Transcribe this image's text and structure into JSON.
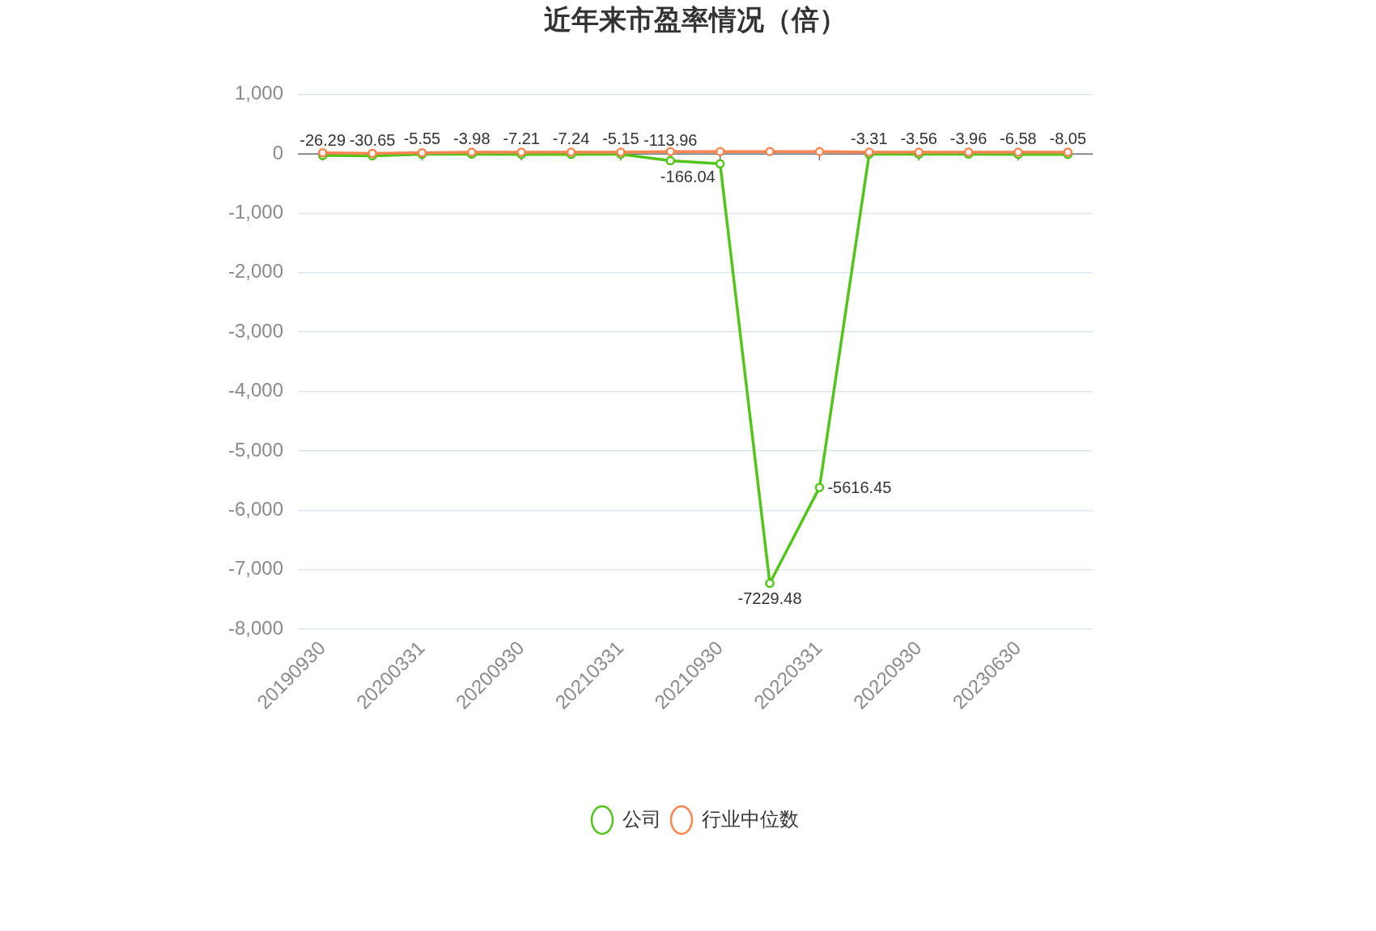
{
  "chart_data": {
    "type": "line",
    "title": "近年来市盈率情况（倍）",
    "categories": [
      "20190930",
      null,
      "20200331",
      null,
      "20200930",
      null,
      "20210331",
      null,
      "20210930",
      null,
      "20220331",
      null,
      "20220930",
      null,
      "20230630",
      null
    ],
    "series": [
      {
        "name": "公司",
        "color": "#52c41a",
        "values": [
          -26.29,
          -30.65,
          -5.55,
          -3.98,
          -7.21,
          -7.24,
          -5.15,
          -113.96,
          -166.04,
          -7229.48,
          -5616.45,
          -3.31,
          -3.56,
          -3.96,
          -6.58,
          -8.05
        ],
        "value_labels": [
          "-26.29",
          "-30.65",
          "-5.55",
          "-3.98",
          "-7.21",
          "-7.24",
          "-5.15",
          "-113.96",
          "-166.04",
          "-7229.48",
          "-5616.45",
          "-3.31",
          "-3.56",
          "-3.96",
          "-6.58",
          "-8.05"
        ]
      },
      {
        "name": "行业中位数",
        "color": "#fa8450",
        "values": [
          20,
          10,
          20,
          30,
          30,
          30,
          30,
          40,
          40,
          40,
          40,
          30,
          30,
          30,
          30,
          30
        ]
      }
    ],
    "ylim": [
      -8000,
      1000
    ],
    "yticks": [
      {
        "value": 1000,
        "label": "1,000"
      },
      0,
      {
        "value": -1000,
        "label": "-1,000"
      },
      {
        "value": -2000,
        "label": "-2,000"
      },
      {
        "value": -3000,
        "label": "-3,000"
      },
      {
        "value": -4000,
        "label": "-4,000"
      },
      {
        "value": -5000,
        "label": "-5,000"
      },
      {
        "value": -6000,
        "label": "-6,000"
      },
      {
        "value": -7000,
        "label": "-7,000"
      },
      {
        "value": -8000,
        "label": "-8,000"
      }
    ],
    "grid": "y",
    "legend": "bottom",
    "marker": "circle"
  }
}
